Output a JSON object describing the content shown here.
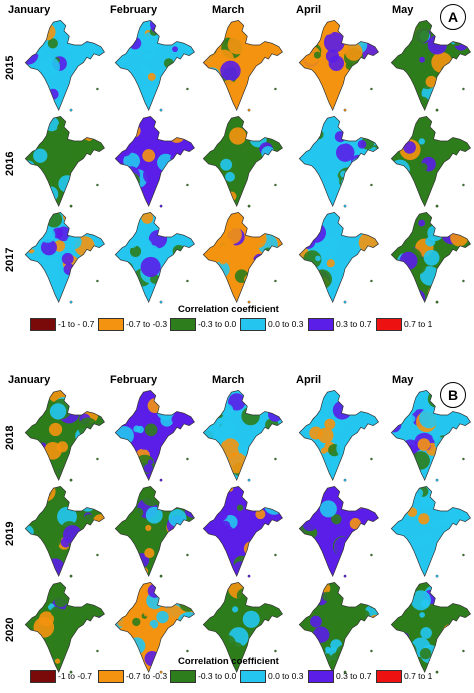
{
  "panels": [
    {
      "label": "A",
      "months": [
        "January",
        "February",
        "March",
        "April",
        "May"
      ],
      "years": [
        "2015",
        "2016",
        "2017"
      ],
      "legend_title": "Correlation coefficient",
      "legend": [
        {
          "label": "-1 to - 0.7",
          "color": "#7a0a0a"
        },
        {
          "label": "-0.7 to -0.3",
          "color": "#f4930f"
        },
        {
          "label": "-0.3 to 0.0",
          "color": "#2e7d1c"
        },
        {
          "label": "0.0 to 0.3",
          "color": "#24c6f0"
        },
        {
          "label": "0.3 to 0.7",
          "color": "#5a1ee8"
        },
        {
          "label": "0.7 to 1",
          "color": "#ee1111"
        }
      ],
      "dominant_classes": [
        [
          "0.0 to 0.3",
          "0.0 to 0.3",
          "-0.7 to -0.3",
          "-0.7 to -0.3",
          "-0.3 to 0.0"
        ],
        [
          "-0.3 to 0.0",
          "0.3 to 0.7",
          "-0.3 to 0.0",
          "0.0 to 0.3",
          "-0.3 to 0.0"
        ],
        [
          "0.0 to 0.3",
          "0.0 to 0.3",
          "-0.7 to -0.3",
          "0.0 to 0.3",
          "-0.3 to 0.0"
        ]
      ]
    },
    {
      "label": "B",
      "months": [
        "January",
        "February",
        "March",
        "April",
        "May"
      ],
      "years": [
        "2018",
        "2019",
        "2020"
      ],
      "legend_title": "Correlation coefficient",
      "legend": [
        {
          "label": "-1 to -0.7",
          "color": "#7a0a0a"
        },
        {
          "label": "-0.7 to -0.3",
          "color": "#f4930f"
        },
        {
          "label": "-0.3 to 0.0",
          "color": "#2e7d1c"
        },
        {
          "label": "0.0 to 0.3",
          "color": "#24c6f0"
        },
        {
          "label": "0.3 to 0.7",
          "color": "#5a1ee8"
        },
        {
          "label": "0.7 to 1",
          "color": "#ee1111"
        }
      ],
      "dominant_classes": [
        [
          "-0.3 to 0.0",
          "0.3 to 0.7",
          "0.0 to 0.3",
          "0.0 to 0.3",
          "0.0 to 0.3"
        ],
        [
          "-0.3 to 0.0",
          "-0.3 to 0.0",
          "0.3 to 0.7",
          "0.3 to 0.7",
          "0.0 to 0.3"
        ],
        [
          "-0.3 to 0.0",
          "-0.7 to -0.3",
          "-0.3 to 0.0",
          "-0.3 to 0.0",
          "-0.3 to 0.0"
        ]
      ]
    }
  ]
}
